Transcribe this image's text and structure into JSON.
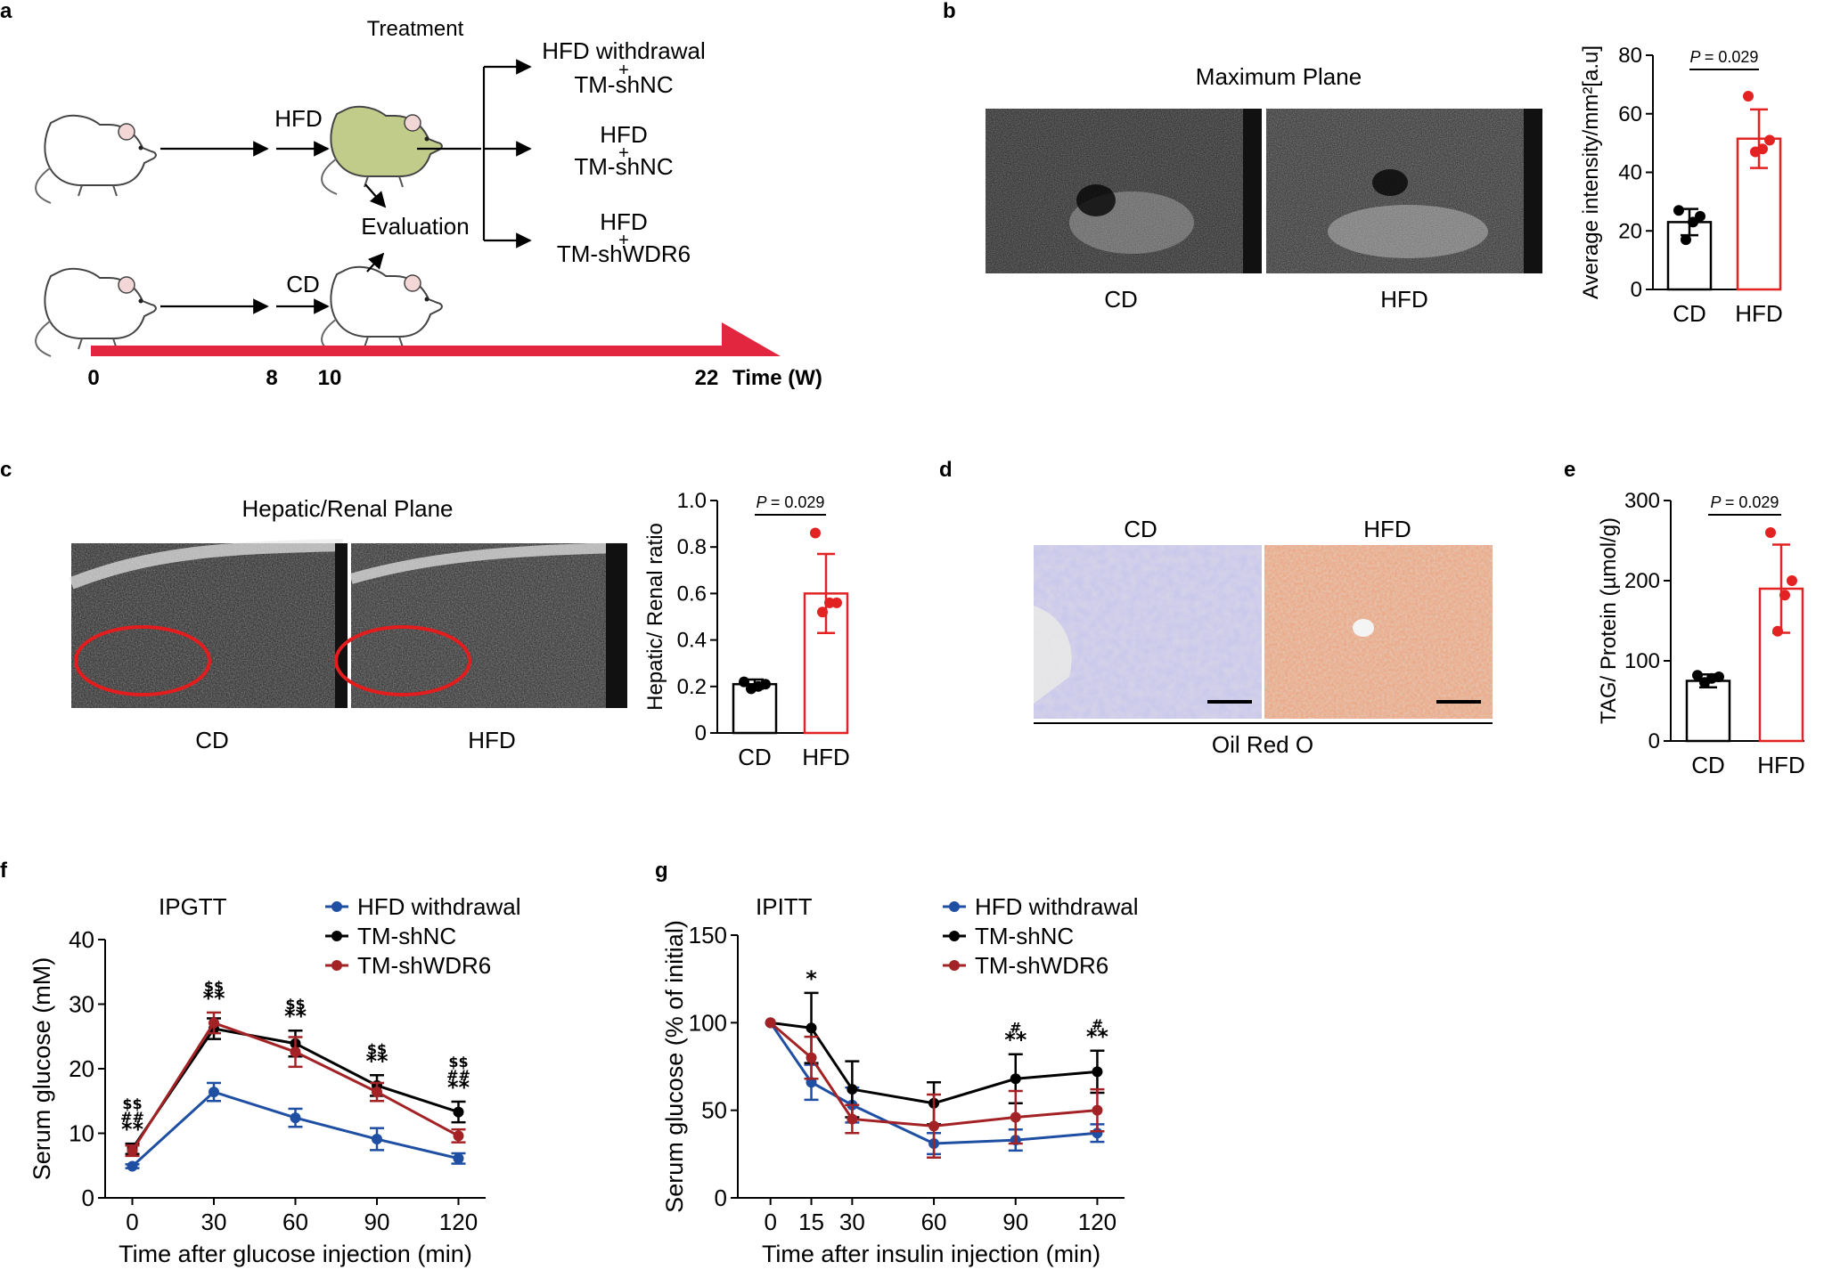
{
  "panels": {
    "a": {
      "letter": "a",
      "treatment_label": "Treatment",
      "hfd_arrow_label": "HFD",
      "cd_arrow_label": "CD",
      "evaluation_label": "Evaluation",
      "groups": [
        {
          "line1": "HFD withdrawal",
          "plus": "+",
          "line2": "TM-shNC",
          "color": "#1a1ad6"
        },
        {
          "line1": "HFD",
          "plus": "+",
          "line2": "TM-shNC",
          "color": "#000000"
        },
        {
          "line1": "HFD",
          "plus": "+",
          "line2": "TM-shWDR6",
          "color": "#e32222"
        }
      ],
      "timeline": {
        "ticks": [
          "0",
          "8",
          "10",
          "22"
        ],
        "unit_label": "Time (W)",
        "color": "#e2263f"
      },
      "mouse_colors": {
        "hfd_body": "#c2cc8a",
        "normal_body": "#ffffff"
      }
    },
    "b": {
      "letter": "b",
      "title": "Maximum Plane",
      "image_labels": [
        "CD",
        "HFD"
      ]
    },
    "c": {
      "letter": "c",
      "title": "Hepatic/Renal Plane",
      "image_labels": [
        "CD",
        "HFD"
      ]
    },
    "d": {
      "letter": "d",
      "column_labels": [
        "CD",
        "HFD"
      ],
      "stain_label": "Oil Red O"
    },
    "e": {
      "letter": "e"
    },
    "f": {
      "letter": "f"
    },
    "g": {
      "letter": "g"
    }
  },
  "chart_data": [
    {
      "id": "b",
      "type": "bar",
      "categories": [
        "CD",
        "HFD"
      ],
      "values": [
        23,
        51.5
      ],
      "errors": [
        4.5,
        10
      ],
      "points": [
        [
          27,
          25,
          23,
          17
        ],
        [
          66,
          51,
          48,
          47
        ]
      ],
      "colors": [
        "#000000",
        "#e32222"
      ],
      "ylabel": "Average intensity/mm²[a.u]",
      "ylim": [
        0,
        80
      ],
      "yticks": [
        "0",
        "20",
        "40",
        "60",
        "80"
      ],
      "p_label": "P",
      "p_value": "= 0.029"
    },
    {
      "id": "c",
      "type": "bar",
      "categories": [
        "CD",
        "HFD"
      ],
      "values": [
        0.21,
        0.6
      ],
      "errors": [
        0.02,
        0.17
      ],
      "points": [
        [
          0.22,
          0.21,
          0.2,
          0.19
        ],
        [
          0.86,
          0.56,
          0.56,
          0.52
        ]
      ],
      "colors": [
        "#000000",
        "#e32222"
      ],
      "ylabel": "Hepatic/ Renal ratio",
      "ylim": [
        0,
        1.0
      ],
      "yticks": [
        "0",
        "0.2",
        "0.4",
        "0.6",
        "0.8",
        "1.0"
      ],
      "p_label": "P",
      "p_value": "= 0.029"
    },
    {
      "id": "e",
      "type": "bar",
      "categories": [
        "CD",
        "HFD"
      ],
      "values": [
        75,
        190
      ],
      "errors": [
        8,
        55
      ],
      "points": [
        [
          82,
          80,
          78,
          73
        ],
        [
          260,
          200,
          182,
          137
        ]
      ],
      "colors": [
        "#000000",
        "#e32222"
      ],
      "ylabel": "TAG/ Protein (µmol/g)",
      "ylim": [
        0,
        300
      ],
      "yticks": [
        "0",
        "100",
        "200",
        "300"
      ],
      "p_label": "P",
      "p_value": "= 0.029"
    },
    {
      "id": "f",
      "type": "line",
      "title": "IPGTT",
      "x": [
        0,
        30,
        60,
        90,
        120
      ],
      "xticks": [
        "0",
        "30",
        "60",
        "90",
        "120"
      ],
      "xlim": [
        -10,
        130
      ],
      "ylim": [
        0,
        40
      ],
      "yticks": [
        "0",
        "10",
        "20",
        "30",
        "40"
      ],
      "xlabel": "Time after glucose injection (min)",
      "ylabel": "Serum glucose (mM)",
      "series": [
        {
          "name": "HFD withdrawal",
          "color": "#1f4fa3",
          "values": [
            4.9,
            16.4,
            12.4,
            9.1,
            6.1
          ],
          "errors": [
            0.3,
            1.4,
            1.4,
            1.7,
            0.8
          ]
        },
        {
          "name": "TM-shNC",
          "color": "#000000",
          "values": [
            7.6,
            26.2,
            23.9,
            17.4,
            13.3
          ],
          "errors": [
            0.8,
            1.6,
            2.0,
            1.6,
            1.6
          ]
        },
        {
          "name": "TM-shWDR6",
          "color": "#a32226",
          "values": [
            7.3,
            27.1,
            22.6,
            16.4,
            9.6
          ],
          "errors": [
            0.8,
            1.6,
            2.3,
            1.4,
            1.0
          ]
        }
      ],
      "annotations": [
        {
          "x": 0,
          "lines": [
            "$$",
            "##",
            "**"
          ]
        },
        {
          "x": 30,
          "lines": [
            "$$",
            "**"
          ]
        },
        {
          "x": 60,
          "lines": [
            "$$",
            "**"
          ]
        },
        {
          "x": 90,
          "lines": [
            "$$",
            "**"
          ]
        },
        {
          "x": 120,
          "lines": [
            "$$",
            "##",
            "**"
          ]
        }
      ]
    },
    {
      "id": "g",
      "type": "line",
      "title": "IPITT",
      "x": [
        0,
        15,
        30,
        60,
        90,
        120
      ],
      "xticks": [
        "0",
        "15",
        "30",
        "60",
        "90",
        "120"
      ],
      "xlim": [
        -12,
        130
      ],
      "ylim": [
        0,
        150
      ],
      "yticks": [
        "0",
        "50",
        "100",
        "150"
      ],
      "xlabel": "Time after insulin injection (min)",
      "ylabel": "Serum glucose (% of initial)",
      "series": [
        {
          "name": "HFD withdrawal",
          "color": "#1f4fa3",
          "values": [
            100,
            66,
            53,
            31,
            33,
            37
          ],
          "errors": [
            0,
            10,
            10,
            6,
            6,
            5
          ]
        },
        {
          "name": "TM-shNC",
          "color": "#000000",
          "values": [
            100,
            97,
            62,
            54,
            68,
            72
          ],
          "errors": [
            0,
            20,
            16,
            12,
            14,
            12
          ]
        },
        {
          "name": "TM-shWDR6",
          "color": "#a32226",
          "values": [
            100,
            80,
            45,
            41,
            46,
            50
          ],
          "errors": [
            0,
            12,
            8,
            18,
            15,
            12
          ]
        }
      ],
      "annotations": [
        {
          "x": 15,
          "lines": [
            "*"
          ]
        },
        {
          "x": 90,
          "lines": [
            "#",
            "**"
          ]
        },
        {
          "x": 120,
          "lines": [
            "#",
            "**"
          ]
        }
      ]
    }
  ]
}
